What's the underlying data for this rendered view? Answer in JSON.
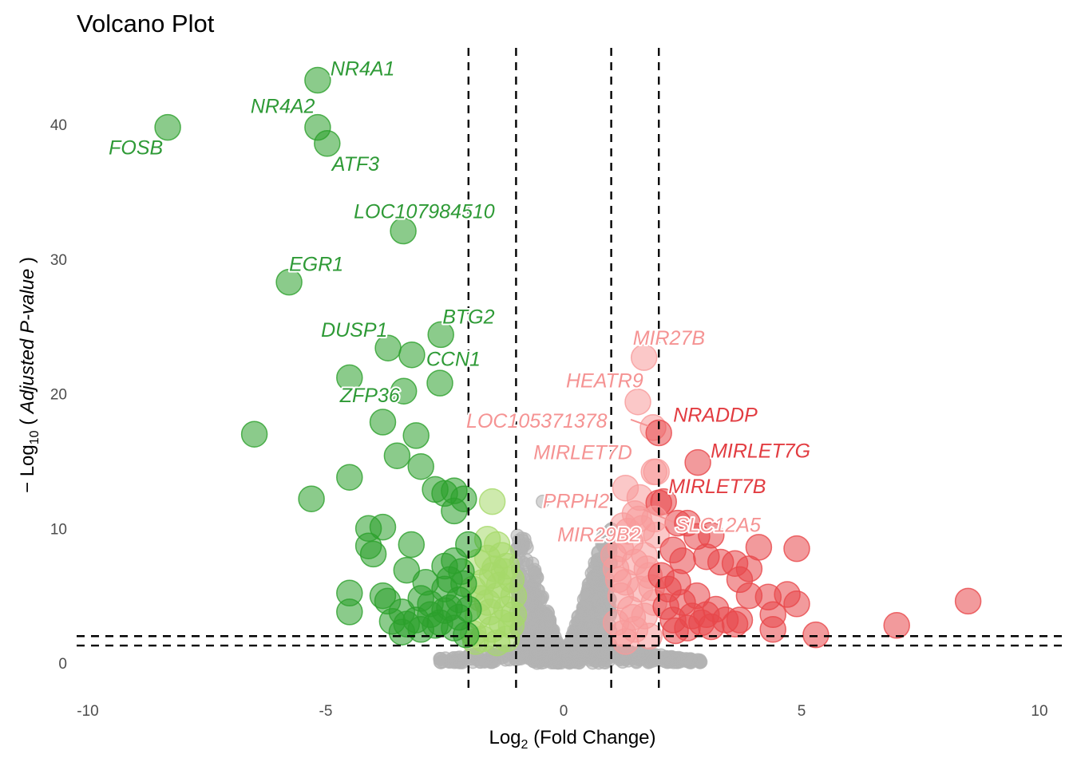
{
  "chart_data": {
    "type": "scatter",
    "title": "Volcano Plot",
    "xlabel": "Log2 (Fold Change)",
    "xlabel_parts": {
      "base": "Log",
      "sub": "2",
      "rest": " (Fold Change)"
    },
    "ylabel": "-Log10 ( Adjusted P-value )",
    "ylabel_parts": {
      "minus": "− Log",
      "sub": "10",
      "open": " ( ",
      "italic": "Adjusted P-value",
      "close": " )"
    },
    "xlim": [
      -10.5,
      10.5
    ],
    "ylim": [
      -2,
      45
    ],
    "x_ticks": [
      -10,
      -5,
      0,
      5,
      10
    ],
    "x_tick_labels": [
      "-10",
      "-5",
      "0",
      "5",
      "10"
    ],
    "y_ticks": [
      0,
      10,
      20,
      30,
      40
    ],
    "y_tick_labels": [
      "0",
      "10",
      "20",
      "30",
      "40"
    ],
    "grid": false,
    "legend": "none",
    "thresholds": {
      "vertical": [
        -2,
        -1,
        1,
        2
      ],
      "horizontal": [
        1.3,
        2
      ]
    },
    "colors": {
      "down_strong": "#2ca02c",
      "down_weak": "#a6d96a",
      "neutral": "#b3b3b3",
      "up_weak": "#f89a9a",
      "up_strong": "#e8474a"
    },
    "labeled_genes": [
      {
        "gene": "FOSB",
        "x": -8.32,
        "y": 39.8,
        "group": "down_strong"
      },
      {
        "gene": "NR4A1",
        "x": -5.17,
        "y": 43.3,
        "group": "down_strong"
      },
      {
        "gene": "NR4A2",
        "x": -5.17,
        "y": 39.8,
        "group": "down_strong"
      },
      {
        "gene": "ATF3",
        "x": -4.97,
        "y": 38.6,
        "group": "down_strong"
      },
      {
        "gene": "LOC107984510",
        "x": -3.37,
        "y": 32.1,
        "group": "down_strong"
      },
      {
        "gene": "EGR1",
        "x": -5.77,
        "y": 28.3,
        "group": "down_strong"
      },
      {
        "gene": "BTG2",
        "x": -2.58,
        "y": 24.4,
        "group": "down_strong"
      },
      {
        "gene": "DUSP1",
        "x": -3.69,
        "y": 23.4,
        "group": "down_strong"
      },
      {
        "gene": "CCN1",
        "x": -3.19,
        "y": 22.9,
        "group": "down_strong"
      },
      {
        "gene": "ZFP36",
        "x": -3.36,
        "y": 20.2,
        "group": "down_strong"
      },
      {
        "gene": "MIR27B",
        "x": 1.69,
        "y": 22.7,
        "group": "up_weak"
      },
      {
        "gene": "HEATR9",
        "x": 1.56,
        "y": 19.4,
        "group": "up_weak"
      },
      {
        "gene": "LOC105371378",
        "x": 1.88,
        "y": 17.5,
        "group": "up_weak"
      },
      {
        "gene": "NRADDP",
        "x": 2.0,
        "y": 17.1,
        "group": "up_strong"
      },
      {
        "gene": "MIRLET7G",
        "x": 2.82,
        "y": 14.9,
        "group": "up_strong"
      },
      {
        "gene": "MIRLET7D",
        "x": 1.95,
        "y": 14.2,
        "group": "up_weak"
      },
      {
        "gene": "MIRLET7B",
        "x": 2.0,
        "y": 11.9,
        "group": "up_strong"
      },
      {
        "gene": "PRPH2",
        "x": -0.44,
        "y": 12.0,
        "group": "neutral"
      },
      {
        "gene": "SLC12A5",
        "x": 1.91,
        "y": 10.7,
        "group": "up_weak"
      },
      {
        "gene": "MIR29B2",
        "x": 1.58,
        "y": 10.7,
        "group": "up_weak"
      }
    ],
    "other_points": {
      "down_strong": [
        [
          -6.5,
          17.0
        ],
        [
          -5.3,
          12.2
        ],
        [
          -4.5,
          21.2
        ],
        [
          -4.5,
          13.8
        ],
        [
          -3.8,
          17.9
        ],
        [
          -3.5,
          15.4
        ],
        [
          -3.1,
          16.9
        ],
        [
          -3.0,
          14.6
        ],
        [
          -2.7,
          12.9
        ],
        [
          -2.5,
          12.6
        ],
        [
          -2.3,
          12.8
        ],
        [
          -2.3,
          11.3
        ],
        [
          -2.1,
          12.2
        ],
        [
          -2.6,
          20.8
        ],
        [
          -4.1,
          10.0
        ],
        [
          -3.8,
          10.1
        ],
        [
          -4.1,
          8.7
        ],
        [
          -4.0,
          8.1
        ],
        [
          -3.2,
          8.8
        ],
        [
          -3.3,
          6.9
        ],
        [
          -2.5,
          7.2
        ],
        [
          -2.0,
          8.8
        ],
        [
          -4.5,
          5.2
        ],
        [
          -4.5,
          3.8
        ],
        [
          -3.8,
          5.0
        ],
        [
          -3.7,
          4.6
        ],
        [
          -3.0,
          4.8
        ],
        [
          -2.5,
          5.5
        ],
        [
          -2.4,
          4.1
        ],
        [
          -3.4,
          2.3
        ],
        [
          -3.1,
          3.2
        ],
        [
          -2.8,
          3.6
        ],
        [
          -2.6,
          3.0
        ],
        [
          -2.2,
          3.4
        ],
        [
          -2.1,
          5.9
        ],
        [
          -2.3,
          2.6
        ],
        [
          -3.0,
          2.5
        ],
        [
          -2.8,
          4.4
        ],
        [
          -2.2,
          4.7
        ],
        [
          -2.05,
          2.1
        ],
        [
          -2.4,
          6.2
        ],
        [
          -2.9,
          6.0
        ],
        [
          -3.4,
          3.8
        ],
        [
          -3.6,
          3.1
        ],
        [
          -2.5,
          3.9
        ],
        [
          -2.15,
          6.8
        ],
        [
          -2.7,
          2.8
        ],
        [
          -3.3,
          2.9
        ],
        [
          -2.3,
          7.6
        ],
        [
          -2.0,
          4.0
        ]
      ],
      "down_weak": [
        [
          -1.5,
          12.0
        ],
        [
          -1.6,
          9.2
        ],
        [
          -1.4,
          8.8
        ],
        [
          -1.3,
          8.0
        ],
        [
          -1.8,
          7.5
        ],
        [
          -1.2,
          7.2
        ],
        [
          -1.5,
          6.5
        ],
        [
          -1.7,
          6.0
        ],
        [
          -1.9,
          5.5
        ],
        [
          -1.1,
          6.2
        ],
        [
          -1.4,
          5.0
        ],
        [
          -1.6,
          4.5
        ],
        [
          -1.2,
          4.0
        ],
        [
          -1.8,
          3.5
        ],
        [
          -1.3,
          3.0
        ],
        [
          -1.5,
          2.5
        ],
        [
          -1.9,
          2.2
        ],
        [
          -1.1,
          2.8
        ],
        [
          -1.7,
          1.8
        ],
        [
          -1.4,
          1.5
        ],
        [
          -1.2,
          1.8
        ],
        [
          -1.6,
          7.8
        ],
        [
          -1.35,
          5.8
        ],
        [
          -1.55,
          3.8
        ],
        [
          -1.75,
          4.8
        ],
        [
          -1.25,
          6.8
        ],
        [
          -1.45,
          7.0
        ],
        [
          -1.85,
          1.6
        ],
        [
          -1.05,
          3.6
        ],
        [
          -1.05,
          5.0
        ]
      ],
      "neutral_cloud": {
        "left_peak": {
          "x_range": [
            -1.0,
            -0.05
          ],
          "y_max": 10.0
        },
        "right_peak": {
          "x_range": [
            0.05,
            1.0
          ],
          "y_max": 10.0
        },
        "outer_tails": {
          "x_range": [
            -2.6,
            2.9
          ],
          "y_max": 1.5
        }
      },
      "up_weak": [
        [
          1.3,
          13.0
        ],
        [
          1.5,
          11.1
        ],
        [
          1.25,
          10.2
        ],
        [
          1.6,
          12.3
        ],
        [
          1.9,
          14.2
        ],
        [
          1.4,
          9.0
        ],
        [
          1.2,
          8.5
        ],
        [
          1.7,
          8.0
        ],
        [
          1.5,
          7.5
        ],
        [
          1.1,
          7.0
        ],
        [
          1.8,
          6.5
        ],
        [
          1.3,
          6.0
        ],
        [
          1.6,
          5.5
        ],
        [
          1.2,
          5.0
        ],
        [
          1.9,
          4.5
        ],
        [
          1.4,
          4.0
        ],
        [
          1.7,
          3.5
        ],
        [
          1.1,
          3.0
        ],
        [
          1.5,
          2.5
        ],
        [
          1.8,
          2.0
        ],
        [
          1.3,
          1.6
        ],
        [
          1.05,
          8.0
        ],
        [
          1.95,
          9.5
        ],
        [
          1.65,
          10.0
        ],
        [
          1.35,
          9.8
        ],
        [
          1.75,
          7.0
        ],
        [
          1.15,
          6.2
        ],
        [
          1.85,
          5.6
        ],
        [
          1.45,
          3.4
        ],
        [
          1.25,
          2.2
        ]
      ],
      "up_strong": [
        [
          2.1,
          12.0
        ],
        [
          2.4,
          10.4
        ],
        [
          2.6,
          10.4
        ],
        [
          2.8,
          9.4
        ],
        [
          3.1,
          9.5
        ],
        [
          2.3,
          8.4
        ],
        [
          2.5,
          7.6
        ],
        [
          3.0,
          7.9
        ],
        [
          3.3,
          7.5
        ],
        [
          3.6,
          7.4
        ],
        [
          3.9,
          7.0
        ],
        [
          4.1,
          8.6
        ],
        [
          4.9,
          8.5
        ],
        [
          3.7,
          6.2
        ],
        [
          3.9,
          5.0
        ],
        [
          4.3,
          4.9
        ],
        [
          4.7,
          5.1
        ],
        [
          4.9,
          4.4
        ],
        [
          3.7,
          3.2
        ],
        [
          4.4,
          3.6
        ],
        [
          5.3,
          2.1
        ],
        [
          4.4,
          2.5
        ],
        [
          3.6,
          2.9
        ],
        [
          7.0,
          2.8
        ],
        [
          8.5,
          4.6
        ],
        [
          2.2,
          5.5
        ],
        [
          2.5,
          4.5
        ],
        [
          2.7,
          3.5
        ],
        [
          2.9,
          3.0
        ],
        [
          3.1,
          2.7
        ],
        [
          2.3,
          3.2
        ],
        [
          2.15,
          4.2
        ],
        [
          2.6,
          2.6
        ],
        [
          3.4,
          3.2
        ],
        [
          3.2,
          4.0
        ],
        [
          2.05,
          6.5
        ],
        [
          2.4,
          6.0
        ],
        [
          2.8,
          5.0
        ],
        [
          3.0,
          3.6
        ],
        [
          2.35,
          2.4
        ]
      ]
    }
  }
}
